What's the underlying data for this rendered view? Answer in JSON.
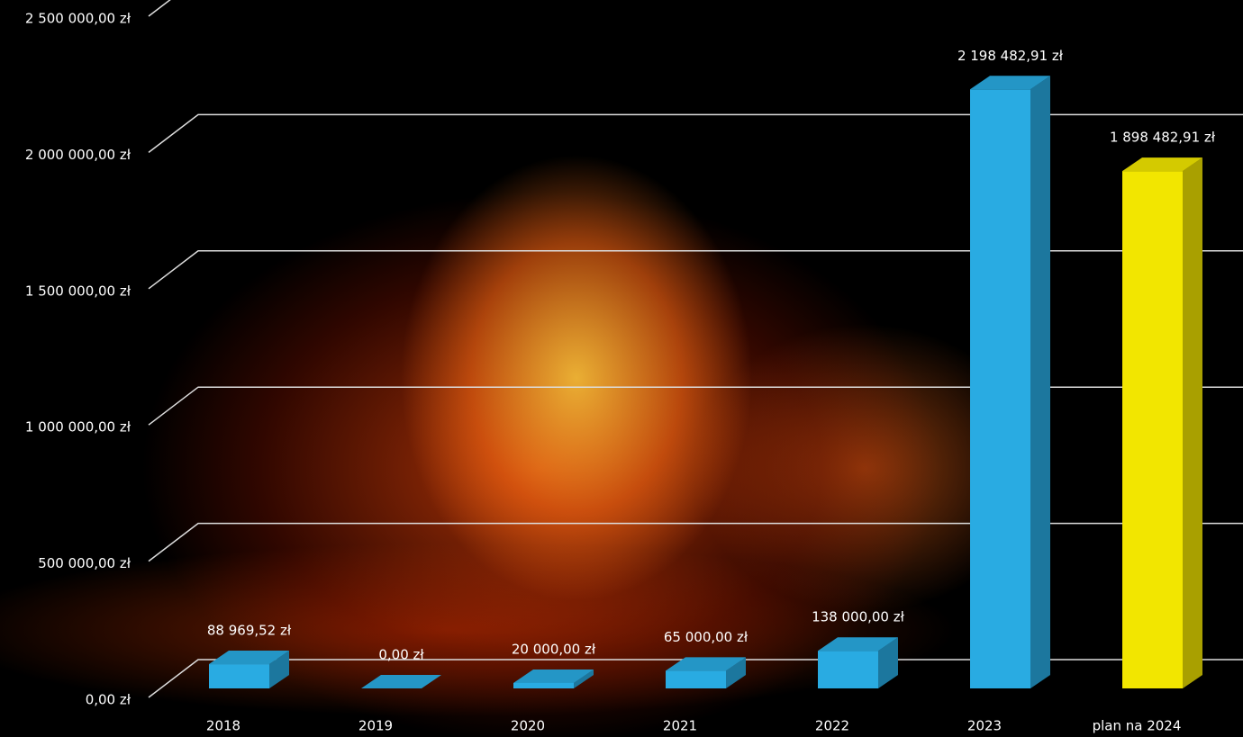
{
  "chart_data": {
    "type": "bar3d",
    "categories": [
      "2018",
      "2019",
      "2020",
      "2021",
      "2022",
      "2023",
      "plan na 2024"
    ],
    "values": [
      88969.52,
      0,
      20000,
      65000,
      138000,
      2198482.91,
      1898482.91
    ],
    "value_labels": [
      "88 969,52 zł",
      "0,00 zł",
      "20 000,00 zł",
      "65 000,00 zł",
      "138 000,00 zł",
      "2 198 482,91 zł",
      "1 898 482,91 zł"
    ],
    "colors": [
      "#29abe2",
      "#29abe2",
      "#29abe2",
      "#29abe2",
      "#29abe2",
      "#29abe2",
      "#f2e600"
    ],
    "ylim": [
      0,
      2500000
    ],
    "yticks": [
      {
        "value": 0,
        "label": "0,00 zł"
      },
      {
        "value": 500000,
        "label": "500 000,00 zł"
      },
      {
        "value": 1000000,
        "label": "1 000 000,00 zł"
      },
      {
        "value": 1500000,
        "label": "1 500 000,00 zł"
      },
      {
        "value": 2000000,
        "label": "2 000 000,00 zł"
      },
      {
        "value": 2500000,
        "label": "2 500 000,00 zł"
      }
    ],
    "grid": true
  }
}
